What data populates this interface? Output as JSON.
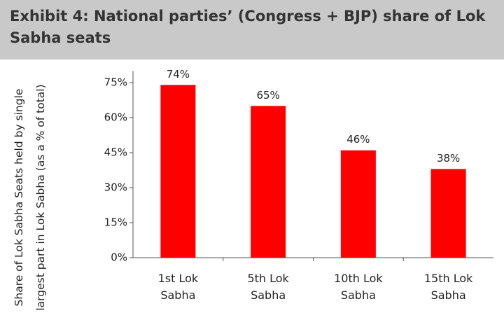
{
  "chart_data": {
    "type": "bar",
    "title": "Exhibit 4: National parties’ (Congress + BJP) share of Lok Sabha seats",
    "y_label": "Share of Lok Sabha Seats held by single largest part in Lok Sabha (as a % of total)",
    "categories": [
      "1st Lok Sabha",
      "5th Lok Sabha",
      "10th Lok Sabha",
      "15th Lok Sabha"
    ],
    "values": [
      74,
      65,
      46,
      38
    ],
    "value_labels": [
      "74%",
      "65%",
      "46%",
      "38%"
    ],
    "color": "#ff0000",
    "ylim": [
      0,
      80
    ],
    "yticks": [
      {
        "value": 0,
        "label": "0%"
      },
      {
        "value": 15,
        "label": "15%"
      },
      {
        "value": 30,
        "label": "30%"
      },
      {
        "value": 45,
        "label": "45%"
      },
      {
        "value": 60,
        "label": "60%"
      },
      {
        "value": 75,
        "label": "75%"
      }
    ],
    "grid": false
  }
}
